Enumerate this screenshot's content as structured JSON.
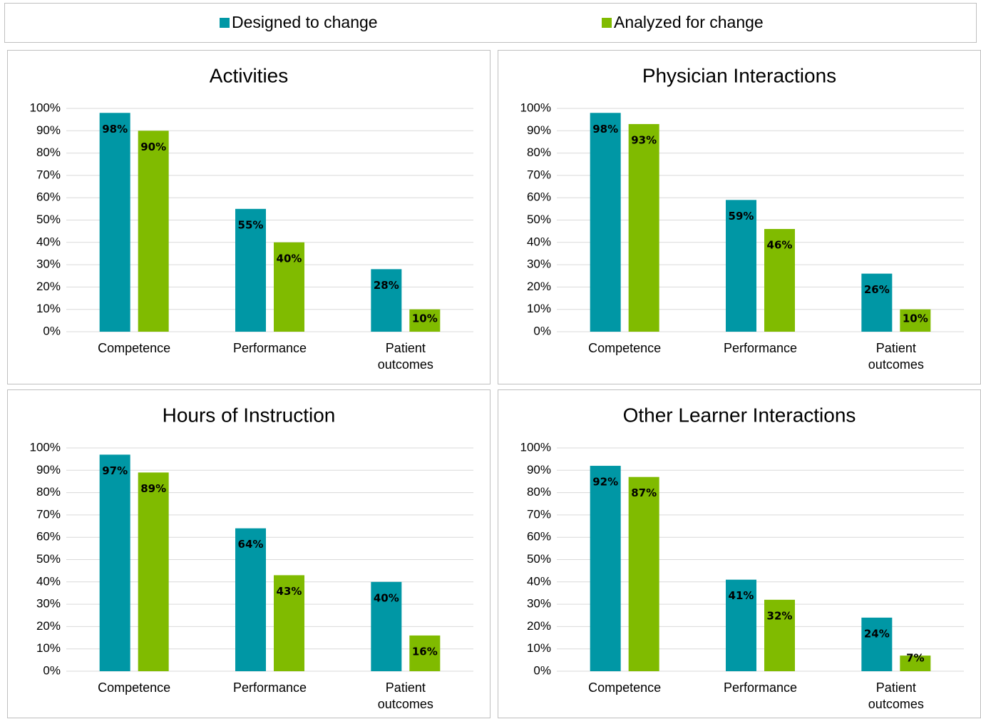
{
  "legend": [
    {
      "name": "Designed to change",
      "color": "#0097a5"
    },
    {
      "name": "Analyzed for change",
      "color": "#80bb00"
    }
  ],
  "chart_data": [
    {
      "type": "bar",
      "title": "Activities",
      "categories": [
        "Competence",
        "Performance",
        "Patient outcomes"
      ],
      "series": [
        {
          "values": [
            98,
            55,
            28
          ],
          "value_labels": [
            "98%",
            "55%",
            "28%"
          ]
        },
        {
          "values": [
            90,
            40,
            10
          ],
          "value_labels": [
            "90%",
            "40%",
            "10%"
          ]
        }
      ],
      "ylim": [
        0,
        100
      ],
      "yticks": [
        {
          "value": 0,
          "label": "0%"
        },
        {
          "value": 10,
          "label": "10%"
        },
        {
          "value": 20,
          "label": "20%"
        },
        {
          "value": 30,
          "label": "30%"
        },
        {
          "value": 40,
          "label": "40%"
        },
        {
          "value": 50,
          "label": "50%"
        },
        {
          "value": 60,
          "label": "60%"
        },
        {
          "value": 70,
          "label": "70%"
        },
        {
          "value": 80,
          "label": "80%"
        },
        {
          "value": 90,
          "label": "90%"
        },
        {
          "value": 100,
          "label": "100%"
        }
      ],
      "grid": true
    },
    {
      "type": "bar",
      "title": "Physician Interactions",
      "categories": [
        "Competence",
        "Performance",
        "Patient outcomes"
      ],
      "series": [
        {
          "values": [
            98,
            59,
            26
          ],
          "value_labels": [
            "98%",
            "59%",
            "26%"
          ]
        },
        {
          "values": [
            93,
            46,
            10
          ],
          "value_labels": [
            "93%",
            "46%",
            "10%"
          ]
        }
      ],
      "ylim": [
        0,
        100
      ],
      "yticks": [
        {
          "value": 0,
          "label": "0%"
        },
        {
          "value": 10,
          "label": "10%"
        },
        {
          "value": 20,
          "label": "20%"
        },
        {
          "value": 30,
          "label": "30%"
        },
        {
          "value": 40,
          "label": "40%"
        },
        {
          "value": 50,
          "label": "50%"
        },
        {
          "value": 60,
          "label": "60%"
        },
        {
          "value": 70,
          "label": "70%"
        },
        {
          "value": 80,
          "label": "80%"
        },
        {
          "value": 90,
          "label": "90%"
        },
        {
          "value": 100,
          "label": "100%"
        }
      ],
      "grid": true
    },
    {
      "type": "bar",
      "title": "Hours of Instruction",
      "categories": [
        "Competence",
        "Performance",
        "Patient outcomes"
      ],
      "series": [
        {
          "values": [
            97,
            64,
            40
          ],
          "value_labels": [
            "97%",
            "64%",
            "40%"
          ]
        },
        {
          "values": [
            89,
            43,
            16
          ],
          "value_labels": [
            "89%",
            "43%",
            "16%"
          ]
        }
      ],
      "ylim": [
        0,
        100
      ],
      "yticks": [
        {
          "value": 0,
          "label": "0%"
        },
        {
          "value": 10,
          "label": "10%"
        },
        {
          "value": 20,
          "label": "20%"
        },
        {
          "value": 30,
          "label": "30%"
        },
        {
          "value": 40,
          "label": "40%"
        },
        {
          "value": 50,
          "label": "50%"
        },
        {
          "value": 60,
          "label": "60%"
        },
        {
          "value": 70,
          "label": "70%"
        },
        {
          "value": 80,
          "label": "80%"
        },
        {
          "value": 90,
          "label": "90%"
        },
        {
          "value": 100,
          "label": "100%"
        }
      ],
      "grid": true
    },
    {
      "type": "bar",
      "title": "Other Learner Interactions",
      "categories": [
        "Competence",
        "Performance",
        "Patient outcomes"
      ],
      "series": [
        {
          "values": [
            92,
            41,
            24
          ],
          "value_labels": [
            "92%",
            "41%",
            "24%"
          ]
        },
        {
          "values": [
            87,
            32,
            7
          ],
          "value_labels": [
            "87%",
            "32%",
            "7%"
          ]
        }
      ],
      "ylim": [
        0,
        100
      ],
      "yticks": [
        {
          "value": 0,
          "label": "0%"
        },
        {
          "value": 10,
          "label": "10%"
        },
        {
          "value": 20,
          "label": "20%"
        },
        {
          "value": 30,
          "label": "30%"
        },
        {
          "value": 40,
          "label": "40%"
        },
        {
          "value": 50,
          "label": "50%"
        },
        {
          "value": 60,
          "label": "60%"
        },
        {
          "value": 70,
          "label": "70%"
        },
        {
          "value": 80,
          "label": "80%"
        },
        {
          "value": 90,
          "label": "90%"
        },
        {
          "value": 100,
          "label": "100%"
        }
      ],
      "grid": true
    }
  ]
}
